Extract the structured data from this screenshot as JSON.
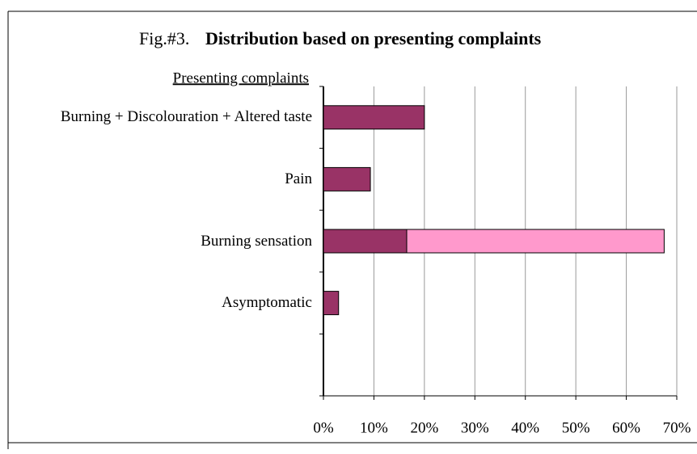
{
  "chart_data": {
    "type": "bar",
    "orientation": "horizontal",
    "stacked": true,
    "figure_label": "Fig.#3.",
    "title": "Distribution based on presenting complaints",
    "y_label": "Presenting complaints",
    "categories": [
      "Burning + Discolouration + Altered taste",
      "Pain",
      "Burning sensation",
      "Asymptomatic",
      null
    ],
    "series": [
      {
        "color": "#993366",
        "values": [
          20,
          9.3,
          16.5,
          3,
          null
        ]
      },
      {
        "color": "#ff99cc",
        "values": [
          null,
          null,
          51,
          null,
          null
        ]
      }
    ],
    "xlim": [
      0,
      70
    ],
    "xticks": [
      {
        "value": 0,
        "label": "0%"
      },
      {
        "value": 10,
        "label": "10%"
      },
      {
        "value": 20,
        "label": "20%"
      },
      {
        "value": 30,
        "label": "30%"
      },
      {
        "value": 40,
        "label": "40%"
      },
      {
        "value": 50,
        "label": "50%"
      },
      {
        "value": 60,
        "label": "60%"
      },
      {
        "value": 70,
        "label": "70%"
      }
    ],
    "grid": true
  }
}
